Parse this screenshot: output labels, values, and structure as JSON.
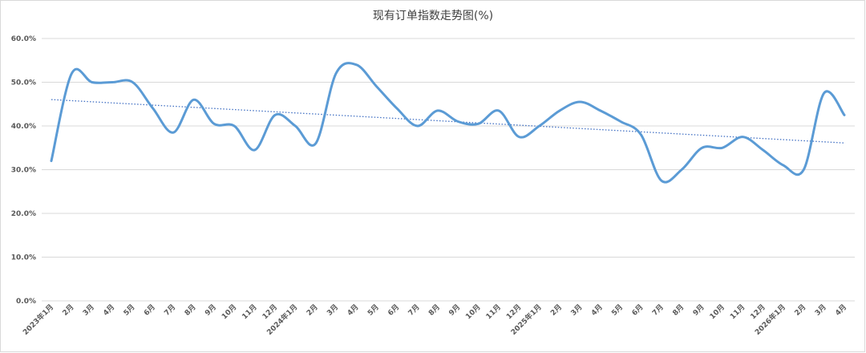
{
  "chart_data": {
    "type": "line",
    "title": "现有订单指数走势图(%)",
    "xlabel": "",
    "ylabel": "",
    "ylim": [
      0,
      60
    ],
    "y_ticks": [
      "0.0%",
      "10.0%",
      "20.0%",
      "30.0%",
      "40.0%",
      "50.0%",
      "60.0%"
    ],
    "grid": true,
    "legend": "none",
    "trendline": true,
    "colors": {
      "series": "#5b9bd5",
      "trend": "#4472c4",
      "grid": "#d9d9d9"
    },
    "categories": [
      "2023年1月",
      "2月",
      "3月",
      "4月",
      "5月",
      "6月",
      "7月",
      "8月",
      "9月",
      "10月",
      "11月",
      "12月",
      "2024年1月",
      "2月",
      "3月",
      "4月",
      "5月",
      "6月",
      "7月",
      "8月",
      "9月",
      "10月",
      "11月",
      "12月",
      "2025年1月",
      "2月",
      "3月",
      "4月",
      "5月",
      "6月",
      "7月",
      "8月",
      "9月",
      "10月",
      "11月",
      "12月",
      "2026年1月",
      "2月",
      "3月",
      "4月"
    ],
    "series": [
      {
        "values": [
          32.0,
          52.0,
          50.0,
          50.0,
          50.0,
          44.0,
          38.5,
          46.0,
          40.5,
          40.0,
          34.5,
          42.5,
          40.0,
          36.0,
          52.0,
          54.0,
          49.0,
          44.0,
          40.0,
          43.5,
          41.0,
          40.5,
          43.5,
          37.5,
          40.0,
          43.5,
          45.5,
          43.5,
          41.0,
          38.0,
          27.5,
          30.0,
          35.0,
          35.0,
          37.5,
          34.5,
          31.0,
          30.0,
          47.5,
          42.5
        ]
      }
    ]
  }
}
